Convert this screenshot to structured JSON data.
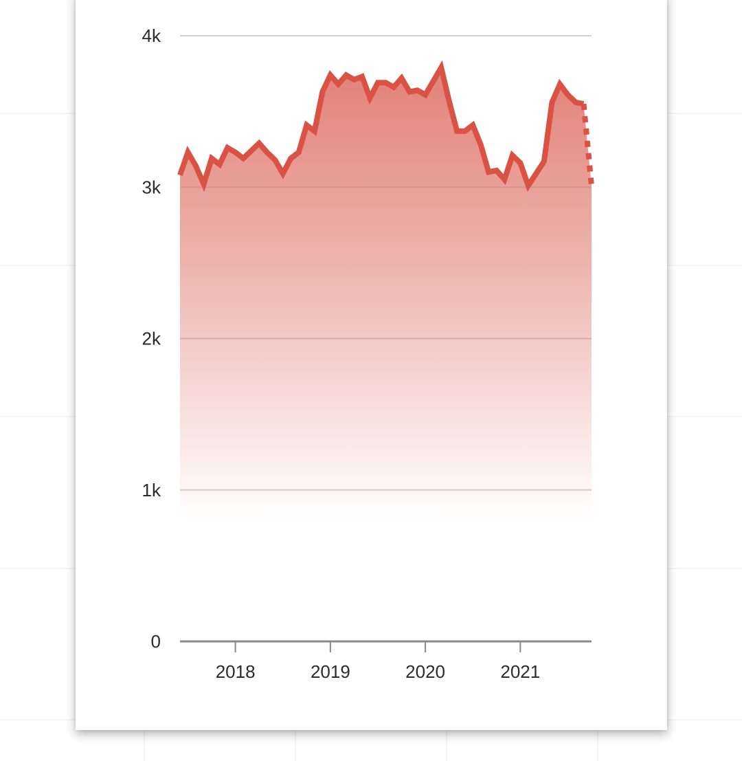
{
  "chart_data": {
    "type": "area",
    "title": "",
    "xlabel": "",
    "ylabel": "",
    "ylim": [
      0,
      4000
    ],
    "xlim": [
      "2017-06",
      "2021-10"
    ],
    "grid": "horizontal",
    "legend": "none",
    "y_ticks": [
      {
        "value": 0,
        "label": "0"
      },
      {
        "value": 1000,
        "label": "1k"
      },
      {
        "value": 2000,
        "label": "2k"
      },
      {
        "value": 3000,
        "label": "3k"
      },
      {
        "value": 4000,
        "label": "4k"
      }
    ],
    "x_ticks": [
      {
        "value": "2018-01",
        "label": "2018"
      },
      {
        "value": "2019-01",
        "label": "2019"
      },
      {
        "value": "2020-01",
        "label": "2020"
      },
      {
        "value": "2021-01",
        "label": "2021"
      }
    ],
    "series": [
      {
        "color": "#d95243",
        "fill_color": "#e07a70",
        "x": [
          "2017-06",
          "2017-07",
          "2017-08",
          "2017-09",
          "2017-10",
          "2017-11",
          "2017-12",
          "2018-01",
          "2018-02",
          "2018-03",
          "2018-04",
          "2018-05",
          "2018-06",
          "2018-07",
          "2018-08",
          "2018-09",
          "2018-10",
          "2018-11",
          "2018-12",
          "2019-01",
          "2019-02",
          "2019-03",
          "2019-04",
          "2019-05",
          "2019-06",
          "2019-07",
          "2019-08",
          "2019-09",
          "2019-10",
          "2019-11",
          "2019-12",
          "2020-01",
          "2020-02",
          "2020-03",
          "2020-04",
          "2020-05",
          "2020-06",
          "2020-07",
          "2020-08",
          "2020-09",
          "2020-10",
          "2020-11",
          "2020-12",
          "2021-01",
          "2021-02",
          "2021-03",
          "2021-04",
          "2021-05",
          "2021-06",
          "2021-07",
          "2021-08",
          "2021-09"
        ],
        "values": [
          3080,
          3230,
          3140,
          3020,
          3190,
          3150,
          3260,
          3230,
          3190,
          3240,
          3290,
          3230,
          3180,
          3090,
          3190,
          3230,
          3410,
          3370,
          3630,
          3740,
          3680,
          3740,
          3710,
          3730,
          3590,
          3690,
          3690,
          3660,
          3720,
          3630,
          3640,
          3610,
          3700,
          3790,
          3570,
          3370,
          3370,
          3410,
          3280,
          3100,
          3110,
          3050,
          3210,
          3160,
          3010,
          3090,
          3170,
          3560,
          3680,
          3610,
          3560,
          3550
        ]
      }
    ],
    "projection": {
      "x": [
        "2021-09",
        "2021-10"
      ],
      "values": [
        3550,
        3010
      ]
    }
  }
}
